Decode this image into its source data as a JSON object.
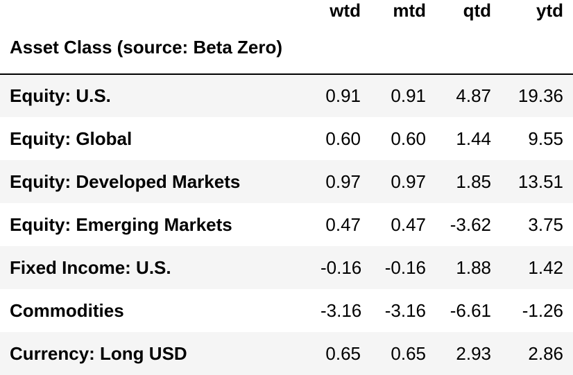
{
  "table": {
    "columns": [
      "wtd",
      "mtd",
      "qtd",
      "ytd"
    ],
    "index_name": "Asset Class (source: Beta Zero)",
    "rows": [
      {
        "label": "Equity: U.S.",
        "values": [
          "0.91",
          "0.91",
          "4.87",
          "19.36"
        ]
      },
      {
        "label": "Equity: Global",
        "values": [
          "0.60",
          "0.60",
          "1.44",
          "9.55"
        ]
      },
      {
        "label": "Equity: Developed Markets",
        "values": [
          "0.97",
          "0.97",
          "1.85",
          "13.51"
        ]
      },
      {
        "label": "Equity: Emerging Markets",
        "values": [
          "0.47",
          "0.47",
          "-3.62",
          "3.75"
        ]
      },
      {
        "label": "Fixed Income: U.S.",
        "values": [
          "-0.16",
          "-0.16",
          "1.88",
          "1.42"
        ]
      },
      {
        "label": "Commodities",
        "values": [
          "-3.16",
          "-3.16",
          "-6.61",
          "-1.26"
        ]
      },
      {
        "label": "Currency: Long USD",
        "values": [
          "0.65",
          "0.65",
          "2.93",
          "2.86"
        ]
      }
    ]
  }
}
